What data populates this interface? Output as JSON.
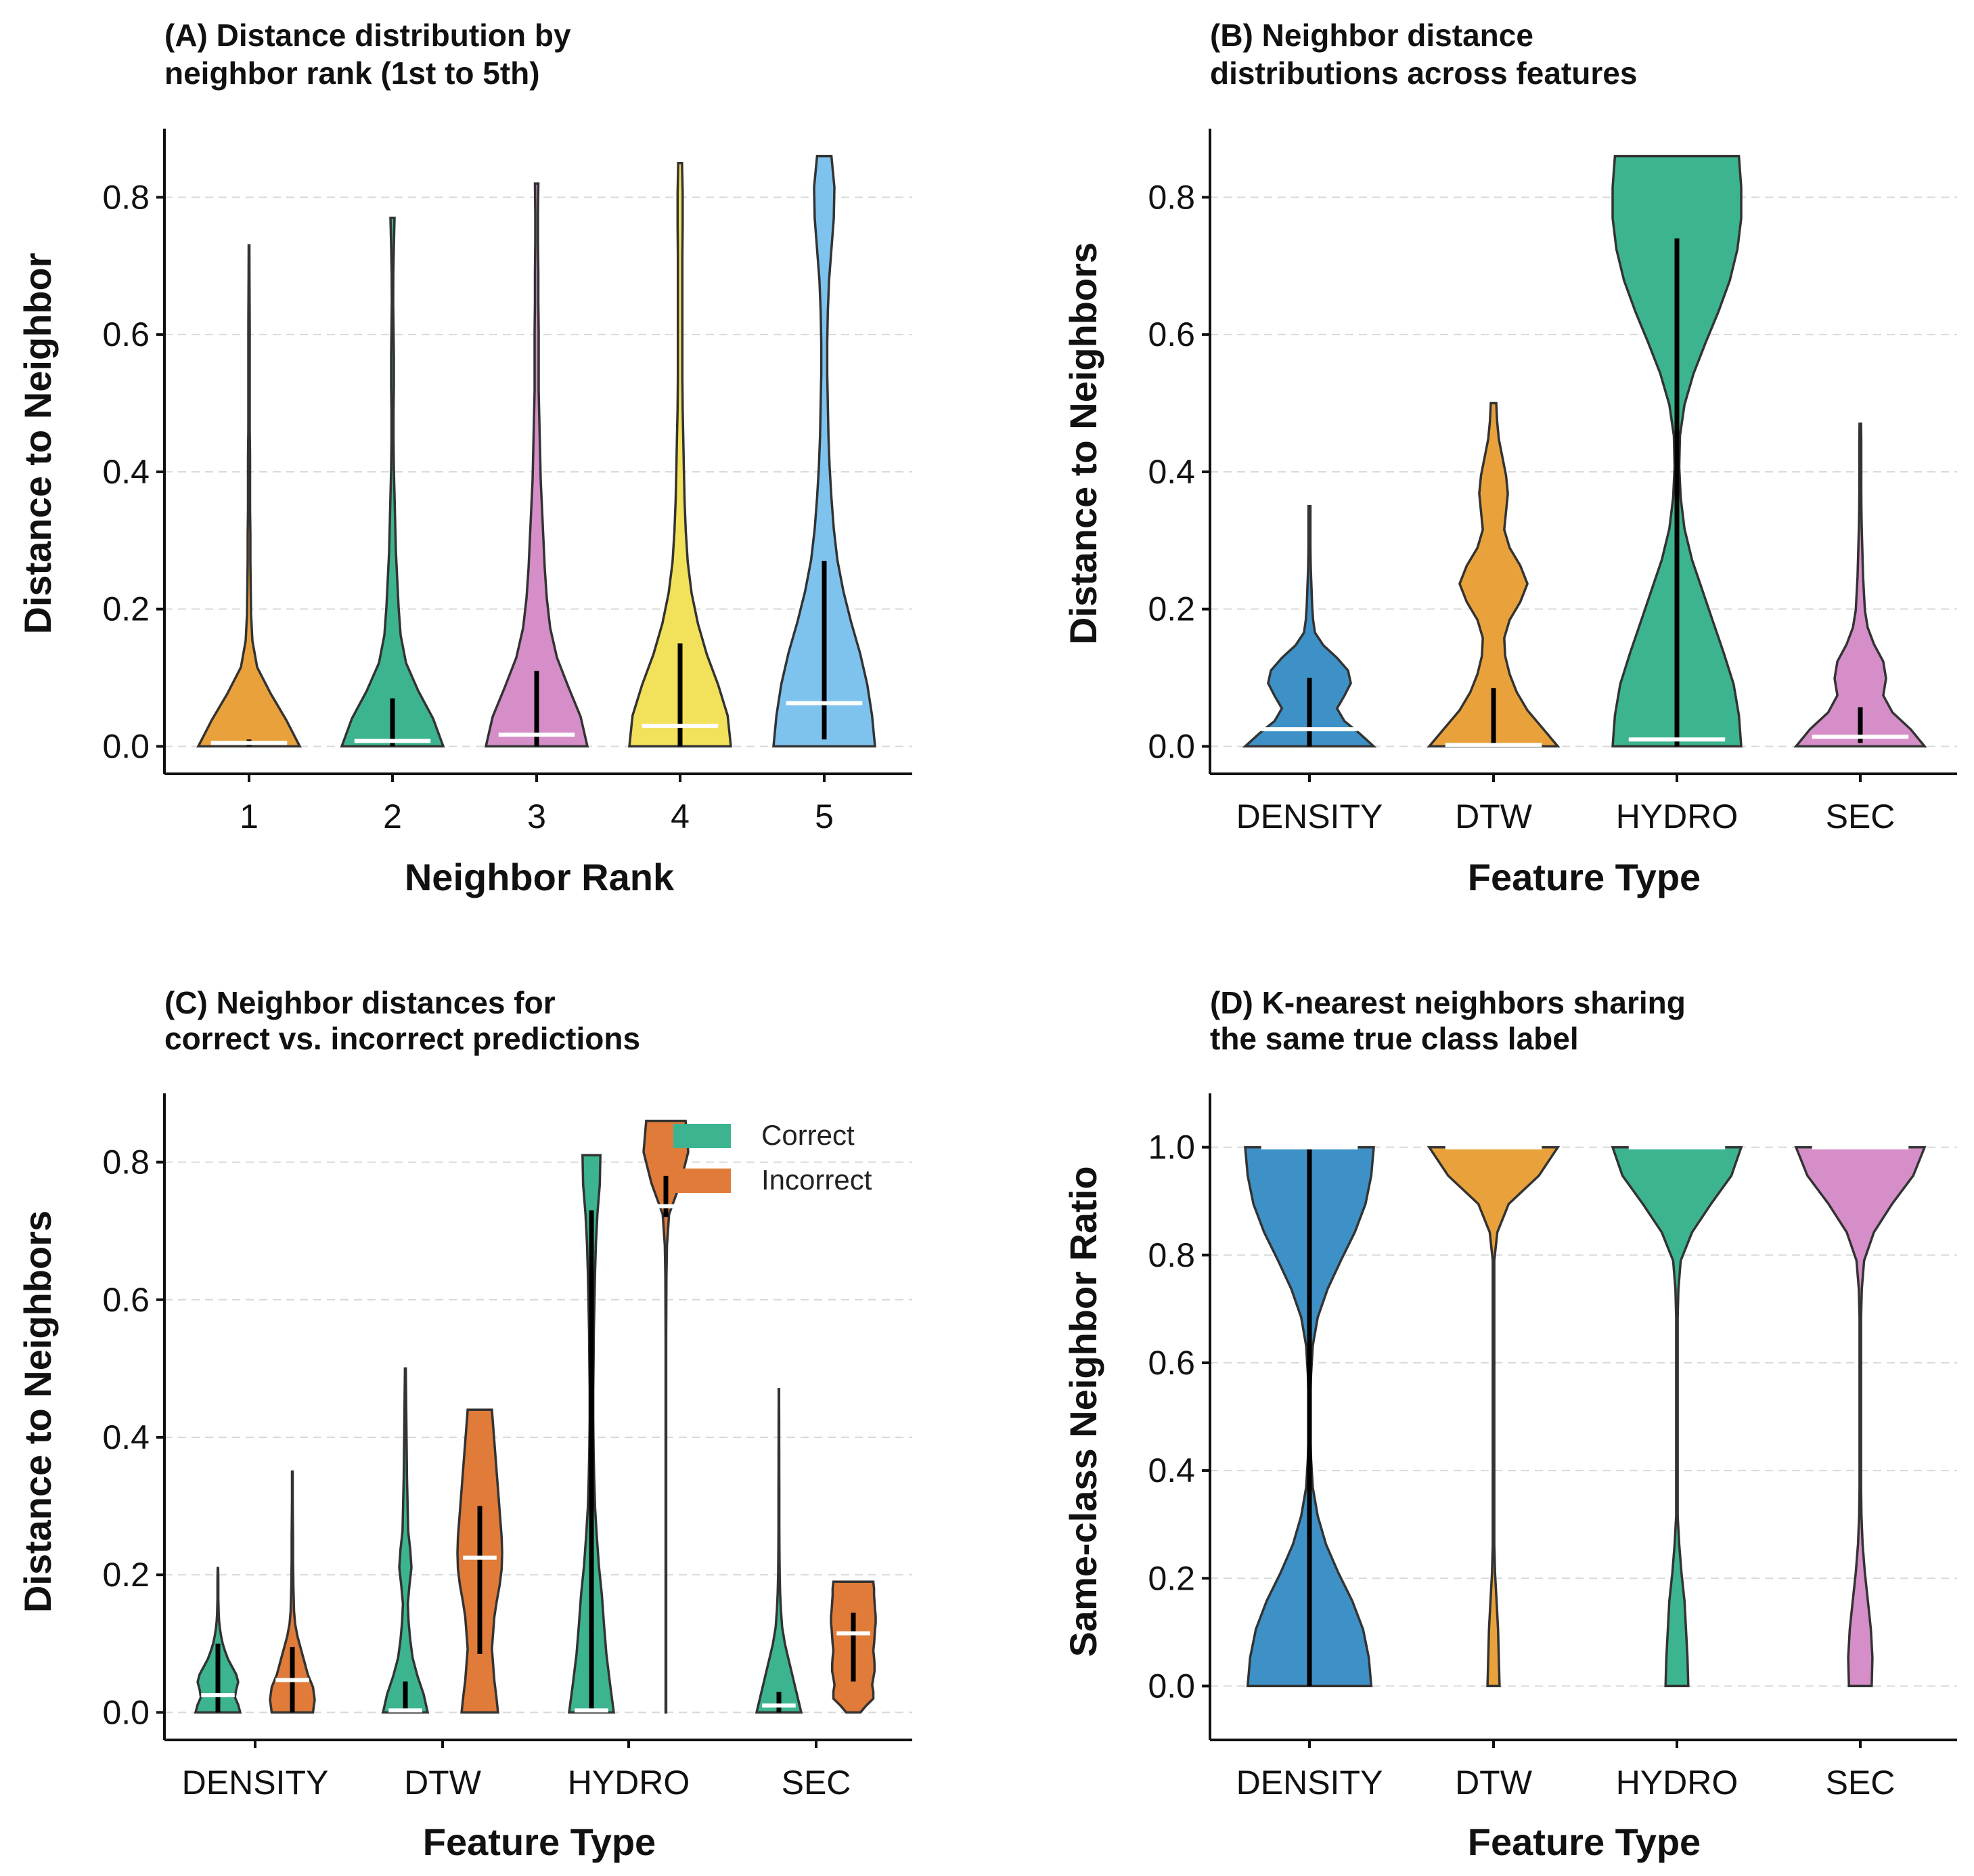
{
  "chart_data": [
    {
      "id": "A",
      "type": "violin",
      "title_lines": [
        "(A) Distance distribution by",
        "neighbor rank (1st to 5th)"
      ],
      "xlabel": "Neighbor Rank",
      "ylabel": "Distance to Neighbor",
      "ylim": [
        -0.04,
        0.9
      ],
      "yticks": [
        "0.0",
        "0.2",
        "0.4",
        "0.6",
        "0.8"
      ],
      "categories": [
        "1",
        "2",
        "3",
        "4",
        "5"
      ],
      "violins": [
        {
          "category": "1",
          "color": "#E9A23B",
          "max": 0.73,
          "q1": 0.0,
          "q3": 0.01,
          "median": 0.005,
          "shape": [
            0.75,
            0.55,
            0.32,
            0.12,
            0.05,
            0.03,
            0.025,
            0.02,
            0.02,
            0.015,
            0.015,
            0.015,
            0.01,
            0.01,
            0.01,
            0.01,
            0.01,
            0.008,
            0.006,
            0.005
          ]
        },
        {
          "category": "2",
          "color": "#3DB490",
          "max": 0.77,
          "q1": 0.0,
          "q3": 0.07,
          "median": 0.008,
          "shape": [
            0.75,
            0.6,
            0.38,
            0.2,
            0.12,
            0.09,
            0.07,
            0.05,
            0.04,
            0.03,
            0.02,
            0.015,
            0.015,
            0.02,
            0.02,
            0.015,
            0.01,
            0.012,
            0.02,
            0.03
          ]
        },
        {
          "category": "3",
          "color": "#D58EC8",
          "max": 0.82,
          "q1": 0.0,
          "q3": 0.11,
          "median": 0.017,
          "shape": [
            0.75,
            0.65,
            0.47,
            0.3,
            0.2,
            0.15,
            0.12,
            0.1,
            0.08,
            0.06,
            0.05,
            0.04,
            0.03,
            0.03,
            0.03,
            0.025,
            0.025,
            0.02,
            0.02,
            0.025
          ]
        },
        {
          "category": "4",
          "color": "#F1E15B",
          "max": 0.85,
          "q1": 0.0,
          "q3": 0.15,
          "median": 0.03,
          "shape": [
            0.8,
            0.75,
            0.6,
            0.42,
            0.28,
            0.18,
            0.12,
            0.09,
            0.07,
            0.06,
            0.05,
            0.04,
            0.035,
            0.035,
            0.035,
            0.035,
            0.035,
            0.04,
            0.04,
            0.03
          ]
        },
        {
          "category": "5",
          "color": "#7EC3EE",
          "max": 0.86,
          "q1": 0.01,
          "q3": 0.27,
          "median": 0.063,
          "shape": [
            0.85,
            0.8,
            0.72,
            0.6,
            0.45,
            0.32,
            0.22,
            0.16,
            0.12,
            0.09,
            0.07,
            0.06,
            0.05,
            0.05,
            0.06,
            0.08,
            0.12,
            0.16,
            0.17,
            0.12
          ]
        }
      ]
    },
    {
      "id": "B",
      "type": "violin",
      "title_lines": [
        "(B) Neighbor distance",
        "distributions across features"
      ],
      "xlabel": "Feature Type",
      "ylabel": "Distance to Neighbors",
      "ylim": [
        -0.04,
        0.9
      ],
      "yticks": [
        "0.0",
        "0.2",
        "0.4",
        "0.6",
        "0.8"
      ],
      "categories": [
        "DENSITY",
        "DTW",
        "HYDRO",
        "SEC"
      ],
      "violins": [
        {
          "category": "DENSITY",
          "color": "#3D91C6",
          "max": 0.35,
          "q1": 0.0,
          "q3": 0.1,
          "median": 0.025,
          "shape": [
            0.7,
            0.55,
            0.38,
            0.3,
            0.38,
            0.45,
            0.42,
            0.3,
            0.15,
            0.06,
            0.04,
            0.03,
            0.025,
            0.02,
            0.015,
            0.012,
            0.01,
            0.01,
            0.01,
            0.01
          ]
        },
        {
          "category": "DTW",
          "color": "#E9A23B",
          "max": 0.5,
          "q1": 0.0,
          "q3": 0.085,
          "median": 0.002,
          "shape": [
            0.72,
            0.55,
            0.38,
            0.26,
            0.18,
            0.13,
            0.12,
            0.18,
            0.3,
            0.38,
            0.3,
            0.18,
            0.12,
            0.14,
            0.16,
            0.14,
            0.1,
            0.06,
            0.04,
            0.03
          ]
        },
        {
          "category": "HYDRO",
          "color": "#3DB490",
          "max": 0.86,
          "q1": 0.0,
          "q3": 0.74,
          "median": 0.01,
          "shape": [
            0.85,
            0.82,
            0.75,
            0.62,
            0.48,
            0.34,
            0.2,
            0.1,
            0.05,
            0.03,
            0.04,
            0.1,
            0.22,
            0.38,
            0.55,
            0.7,
            0.8,
            0.85,
            0.85,
            0.82
          ]
        },
        {
          "category": "SEC",
          "color": "#D58EC8",
          "max": 0.47,
          "q1": 0.005,
          "q3": 0.057,
          "median": 0.014,
          "shape": [
            0.7,
            0.55,
            0.35,
            0.25,
            0.28,
            0.25,
            0.15,
            0.08,
            0.05,
            0.04,
            0.03,
            0.025,
            0.02,
            0.015,
            0.012,
            0.01,
            0.01,
            0.01,
            0.01,
            0.008
          ]
        }
      ]
    },
    {
      "id": "C",
      "type": "violin",
      "title_lines": [
        "(C) Neighbor distances for",
        "correct vs. incorrect predictions"
      ],
      "xlabel": "Feature Type",
      "ylabel": "Distance to Neighbors",
      "ylim": [
        -0.04,
        0.9
      ],
      "yticks": [
        "0.0",
        "0.2",
        "0.4",
        "0.6",
        "0.8"
      ],
      "categories": [
        "DENSITY",
        "DTW",
        "HYDRO",
        "SEC"
      ],
      "legend": [
        {
          "label": "Correct",
          "color": "#3DB490"
        },
        {
          "label": "Incorrect",
          "color": "#E07B39"
        }
      ],
      "violins": [
        {
          "category": "DENSITY",
          "group": "Correct",
          "color": "#3DB490",
          "max": 0.21,
          "q1": 0.0,
          "q3": 0.1,
          "median": 0.025,
          "shape": [
            0.55,
            0.5,
            0.42,
            0.45,
            0.5,
            0.45,
            0.35,
            0.25,
            0.18,
            0.12,
            0.08,
            0.05,
            0.03,
            0.02,
            0.015,
            0.01,
            0.01,
            0.01,
            0.008,
            0.005
          ]
        },
        {
          "category": "DENSITY",
          "group": "Incorrect",
          "color": "#E07B39",
          "max": 0.35,
          "q1": 0.0,
          "q3": 0.095,
          "median": 0.047,
          "shape": [
            0.6,
            0.65,
            0.6,
            0.45,
            0.35,
            0.25,
            0.15,
            0.08,
            0.05,
            0.04,
            0.03,
            0.025,
            0.02,
            0.02,
            0.02,
            0.015,
            0.012,
            0.01,
            0.01,
            0.01
          ]
        },
        {
          "category": "DTW",
          "group": "Correct",
          "color": "#3DB490",
          "max": 0.5,
          "q1": 0.0,
          "q3": 0.045,
          "median": 0.003,
          "shape": [
            0.55,
            0.45,
            0.3,
            0.18,
            0.12,
            0.08,
            0.06,
            0.1,
            0.15,
            0.12,
            0.07,
            0.06,
            0.05,
            0.04,
            0.035,
            0.03,
            0.025,
            0.02,
            0.015,
            0.01
          ]
        },
        {
          "category": "DTW",
          "group": "Incorrect",
          "color": "#E07B39",
          "max": 0.44,
          "q1": 0.085,
          "q3": 0.3,
          "median": 0.225,
          "shape": [
            0.75,
            0.68,
            0.6,
            0.55,
            0.5,
            0.55,
            0.6,
            0.7,
            0.82,
            0.9,
            0.92,
            0.9,
            0.85,
            0.8,
            0.75,
            0.7,
            0.65,
            0.6,
            0.55,
            0.5
          ]
        },
        {
          "category": "HYDRO",
          "group": "Correct",
          "color": "#3DB490",
          "max": 0.81,
          "q1": 0.0,
          "q3": 0.73,
          "median": 0.003,
          "shape": [
            0.75,
            0.62,
            0.5,
            0.42,
            0.35,
            0.25,
            0.18,
            0.12,
            0.09,
            0.07,
            0.06,
            0.06,
            0.07,
            0.08,
            0.1,
            0.12,
            0.15,
            0.2,
            0.28,
            0.3
          ]
        },
        {
          "category": "HYDRO",
          "group": "Incorrect",
          "color": "#E07B39",
          "max": 0.86,
          "q1": 0.72,
          "q3": 0.78,
          "median": 0.736,
          "shape": [
            0.01,
            0.01,
            0.01,
            0.01,
            0.01,
            0.01,
            0.01,
            0.01,
            0.01,
            0.01,
            0.01,
            0.01,
            0.01,
            0.015,
            0.02,
            0.04,
            0.12,
            0.55,
            0.85,
            0.75
          ]
        },
        {
          "category": "SEC",
          "group": "Correct",
          "color": "#3DB490",
          "max": 0.47,
          "q1": 0.0,
          "q3": 0.03,
          "median": 0.01,
          "shape": [
            0.55,
            0.45,
            0.35,
            0.25,
            0.15,
            0.08,
            0.05,
            0.03,
            0.02,
            0.015,
            0.012,
            0.01,
            0.01,
            0.01,
            0.008,
            0.008,
            0.006,
            0.006,
            0.005,
            0.005
          ]
        },
        {
          "category": "SEC",
          "group": "Incorrect",
          "color": "#E07B39",
          "max": 0.19,
          "q1": 0.045,
          "q3": 0.145,
          "median": 0.115,
          "shape": [
            0.3,
            0.55,
            0.85,
            0.85,
            0.8,
            0.85,
            0.9,
            0.9,
            0.88,
            0.85,
            0.88,
            0.9,
            0.92,
            0.95,
            0.95,
            0.92,
            0.9,
            0.88,
            0.88,
            0.85
          ]
        }
      ]
    },
    {
      "id": "D",
      "type": "violin",
      "title_lines": [
        "(D) K-nearest neighbors sharing",
        "the same true class label"
      ],
      "xlabel": "Feature Type",
      "ylabel": "Same-class Neighbor Ratio",
      "ylim": [
        -0.1,
        1.1
      ],
      "yticks": [
        "0.0",
        "0.2",
        "0.4",
        "0.6",
        "0.8",
        "1.0"
      ],
      "categories": [
        "DENSITY",
        "DTW",
        "HYDRO",
        "SEC"
      ],
      "violins": [
        {
          "category": "DENSITY",
          "color": "#3D91C6",
          "min": 0.0,
          "max": 1.0,
          "q1": 0.0,
          "q3": 1.0,
          "median": 1.0,
          "shape": [
            0.75,
            0.72,
            0.65,
            0.52,
            0.35,
            0.2,
            0.1,
            0.04,
            0.02,
            0.01,
            0.01,
            0.02,
            0.04,
            0.1,
            0.22,
            0.38,
            0.55,
            0.68,
            0.75,
            0.78
          ]
        },
        {
          "category": "DTW",
          "color": "#E9A23B",
          "min": 0.0,
          "max": 1.0,
          "q1": 1.0,
          "q3": 1.0,
          "median": 1.0,
          "shape": [
            0.08,
            0.07,
            0.06,
            0.04,
            0.02,
            0.01,
            0.01,
            0.01,
            0.01,
            0.01,
            0.01,
            0.01,
            0.01,
            0.01,
            0.01,
            0.01,
            0.05,
            0.2,
            0.6,
            0.85
          ]
        },
        {
          "category": "HYDRO",
          "color": "#3DB490",
          "min": 0.0,
          "max": 1.0,
          "q1": 1.0,
          "q3": 1.0,
          "median": 1.0,
          "shape": [
            0.15,
            0.14,
            0.12,
            0.1,
            0.06,
            0.03,
            0.01,
            0.01,
            0.01,
            0.01,
            0.01,
            0.01,
            0.01,
            0.01,
            0.02,
            0.05,
            0.2,
            0.45,
            0.72,
            0.85
          ]
        },
        {
          "category": "SEC",
          "color": "#D58EC8",
          "min": 0.0,
          "max": 1.0,
          "q1": 1.0,
          "q3": 1.0,
          "median": 1.0,
          "shape": [
            0.15,
            0.16,
            0.14,
            0.1,
            0.06,
            0.03,
            0.015,
            0.01,
            0.01,
            0.01,
            0.01,
            0.01,
            0.01,
            0.01,
            0.02,
            0.05,
            0.18,
            0.42,
            0.7,
            0.85
          ]
        }
      ]
    }
  ]
}
